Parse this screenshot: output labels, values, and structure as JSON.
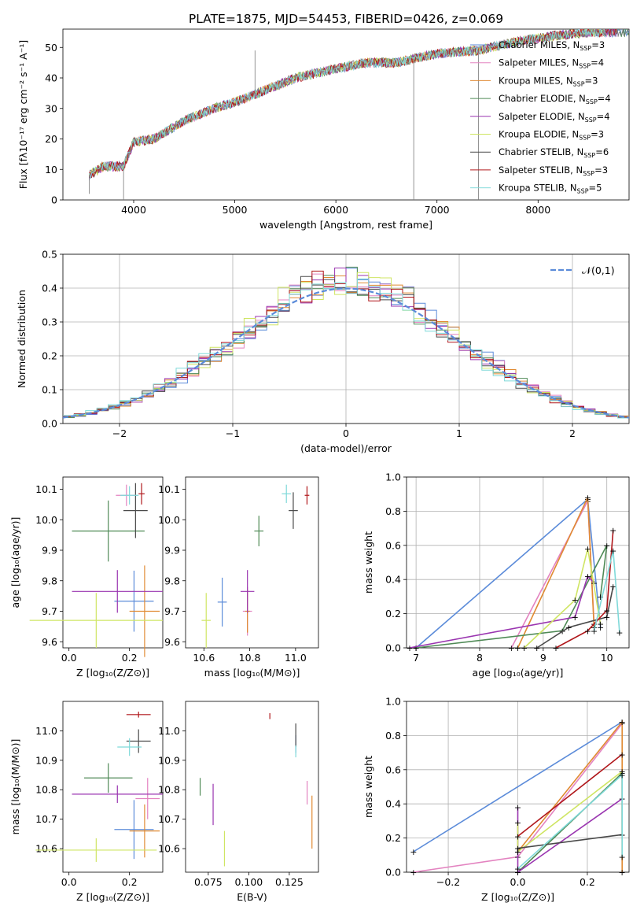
{
  "title": "PLATE=1875, MJD=54453, FIBERID=0426, z=0.069",
  "colors": {
    "Chabrier MILES": "#5b8bd9",
    "Salpeter MILES": "#e383c0",
    "Kroupa MILES": "#e08a32",
    "Chabrier ELODIE": "#4f8a56",
    "Salpeter ELODIE": "#9a35b0",
    "Kroupa ELODIE": "#cfe563",
    "Chabrier STELIB": "#4a4a4a",
    "Salpeter STELIB": "#b0171b",
    "Kroupa STELIB": "#7fd9d9"
  },
  "chart_data": [
    {
      "type": "line",
      "xlabel": "wavelength [Angstrom, rest frame]",
      "ylabel": "Flux [fλ10⁻¹⁷ erg cm⁻² s⁻¹ A⁻¹]",
      "xlim": [
        3300,
        8900
      ],
      "ylim": [
        0,
        56
      ],
      "xticks": [
        "4000",
        "5000",
        "6000",
        "7000",
        "8000"
      ],
      "yticks": [
        "0",
        "10",
        "20",
        "30",
        "40",
        "50"
      ],
      "legend_position": "right",
      "series": [
        {
          "name_main": "Chabrier MILES, N",
          "name_sub": "SSP",
          "name_tail": "=3"
        },
        {
          "name_main": "Salpeter MILES, N",
          "name_sub": "SSP",
          "name_tail": "=4"
        },
        {
          "name_main": "Kroupa MILES, N",
          "name_sub": "SSP",
          "name_tail": "=3"
        },
        {
          "name_main": "Chabrier ELODIE, N",
          "name_sub": "SSP",
          "name_tail": "=4"
        },
        {
          "name_main": "Salpeter ELODIE, N",
          "name_sub": "SSP",
          "name_tail": "=4"
        },
        {
          "name_main": "Kroupa ELODIE, N",
          "name_sub": "SSP",
          "name_tail": "=3"
        },
        {
          "name_main": "Chabrier STELIB, N",
          "name_sub": "SSP",
          "name_tail": "=6"
        },
        {
          "name_main": "Salpeter STELIB, N",
          "name_sub": "SSP",
          "name_tail": "=3"
        },
        {
          "name_main": "Kroupa STELIB, N",
          "name_sub": "SSP",
          "name_tail": "=5"
        }
      ],
      "continuum_x": [
        3560,
        3700,
        3900,
        4000,
        4200,
        4500,
        4800,
        5000,
        5300,
        5600,
        6000,
        6300,
        6600,
        7000,
        7400,
        7800,
        8200,
        8500,
        8800
      ],
      "continuum_y": [
        8,
        11,
        11,
        19,
        20,
        26,
        30,
        32,
        36,
        40,
        43,
        45,
        45,
        48,
        49,
        52,
        54,
        55,
        55
      ],
      "spikes": [
        {
          "x": 5200,
          "y": 49
        },
        {
          "x": 3560,
          "y": 2
        },
        {
          "x": 3900,
          "y": 0
        },
        {
          "x": 6770,
          "y": 0
        },
        {
          "x": 7410,
          "y": 0
        }
      ]
    },
    {
      "type": "bar",
      "xlabel": "(data-model)/error",
      "ylabel": "Normed distribution",
      "xlim": [
        -2.5,
        2.5
      ],
      "ylim": [
        0,
        0.5
      ],
      "xticks": [
        "−2",
        "−1",
        "0",
        "1",
        "2"
      ],
      "yticks": [
        "0.0",
        "0.1",
        "0.2",
        "0.3",
        "0.4",
        "0.5"
      ],
      "legend": {
        "dash_label": "𝒩(0,1)",
        "position": "top-right"
      },
      "bin_width": 0.1
    },
    {
      "type": "scatter",
      "xlabel": "Z [log₁₀(Z/Z⊙)]",
      "ylabel": "age  [log₁₀(age/yr)]",
      "xlim": [
        -0.02,
        0.31
      ],
      "ylim": [
        9.58,
        10.14
      ],
      "xticks": [
        "0.0",
        "0.2"
      ],
      "yticks": [
        "9.6",
        "9.7",
        "9.8",
        "9.9",
        "10.0",
        "10.1"
      ],
      "points": [
        {
          "x": 0.215,
          "xerr": 0.065,
          "y": 9.733,
          "yerr": 0.1
        },
        {
          "x": 0.19,
          "xerr": 0.035,
          "y": 10.08,
          "yerr": 0.035
        },
        {
          "x": 0.25,
          "xerr": 0.05,
          "y": 9.7,
          "yerr": 0.15
        },
        {
          "x": 0.13,
          "xerr": 0.12,
          "y": 9.963,
          "yerr": 0.1
        },
        {
          "x": 0.16,
          "xerr": 0.15,
          "y": 9.765,
          "yerr": 0.07
        },
        {
          "x": 0.09,
          "xerr": 0.22,
          "y": 9.67,
          "yerr": 0.09
        },
        {
          "x": 0.22,
          "xerr": 0.04,
          "y": 10.03,
          "yerr": 0.09
        },
        {
          "x": 0.24,
          "xerr": 0.01,
          "y": 10.085,
          "yerr": 0.035
        },
        {
          "x": 0.2,
          "xerr": 0.03,
          "y": 10.08,
          "yerr": 0.03
        }
      ]
    },
    {
      "type": "scatter",
      "xlabel": "mass [log₁₀(M/M⊙)]",
      "ylabel": "",
      "xlim": [
        10.52,
        11.1
      ],
      "ylim": [
        9.58,
        10.14
      ],
      "xticks": [
        "10.6",
        "10.8",
        "11.0"
      ],
      "yticks": [
        "9.6",
        "9.7",
        "9.8",
        "9.9",
        "10.0",
        "10.1"
      ]
    },
    {
      "type": "line",
      "xlabel": "age  [log₁₀(age/yr)]",
      "ylabel": "mass weight",
      "xlim": [
        6.85,
        10.35
      ],
      "ylim": [
        0,
        1
      ],
      "xticks": [
        "7",
        "8",
        "9",
        "10"
      ],
      "yticks": [
        "0.0",
        "0.2",
        "0.4",
        "0.6",
        "0.8",
        "1.0"
      ]
    },
    {
      "type": "scatter",
      "xlabel": "Z [log₁₀(Z/Z⊙)]",
      "ylabel": "mass [log₁₀(M/M⊙)]",
      "xlim": [
        -0.02,
        0.31
      ],
      "ylim": [
        10.52,
        11.1
      ],
      "xticks": [
        "0.0",
        "0.2"
      ],
      "yticks": [
        "10.6",
        "10.7",
        "10.8",
        "10.9",
        "11.0"
      ]
    },
    {
      "type": "scatter",
      "xlabel": "E(B-V)",
      "ylabel": "",
      "xlim": [
        0.061,
        0.143
      ],
      "ylim": [
        10.52,
        11.1
      ],
      "xticks": [
        "0.075",
        "0.100",
        "0.125"
      ],
      "yticks": [
        "10.6",
        "10.7",
        "10.8",
        "10.9",
        "11.0"
      ]
    },
    {
      "type": "line",
      "xlabel": "Z [log₁₀(Z/Z⊙)]",
      "ylabel": "mass weight",
      "xlim": [
        -0.32,
        0.32
      ],
      "ylim": [
        0,
        1
      ],
      "xticks": [
        "−0.2",
        "0.0",
        "0.2"
      ],
      "yticks": [
        "0.0",
        "0.2",
        "0.4",
        "0.6",
        "0.8",
        "1.0"
      ]
    }
  ]
}
